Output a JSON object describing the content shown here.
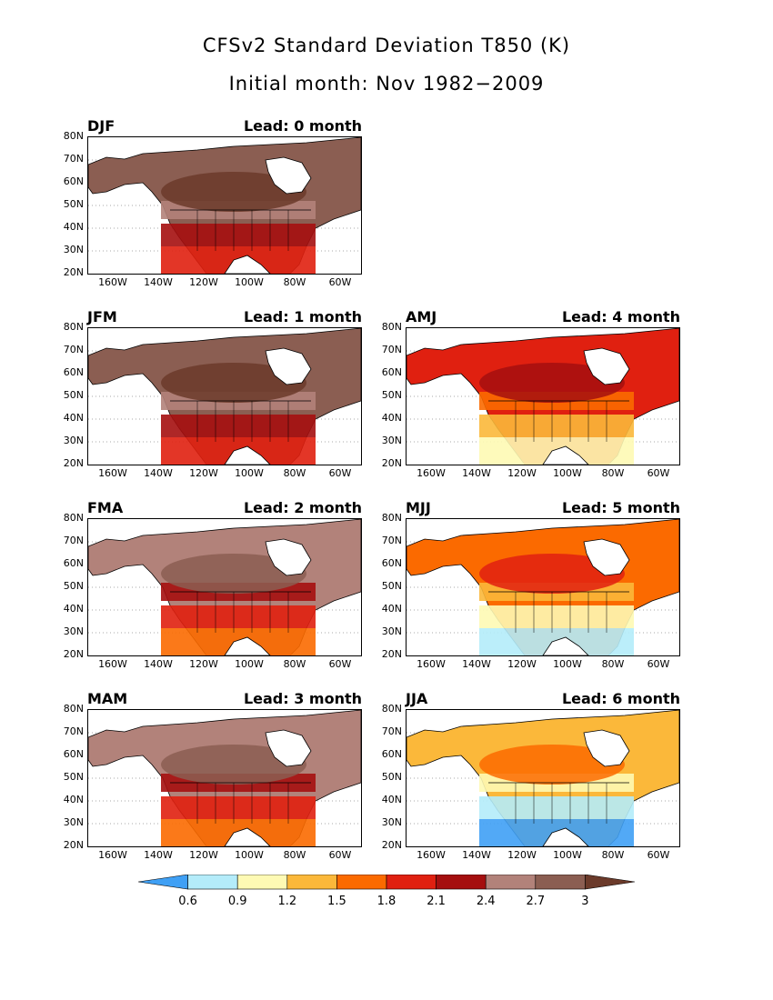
{
  "title": "CFSv2 Standard Deviation T850 (K)",
  "subtitle": "Initial month: Nov 1982−2009",
  "y_tick_labels": [
    "80N",
    "70N",
    "60N",
    "50N",
    "40N",
    "30N",
    "20N"
  ],
  "x_tick_labels": [
    "160W",
    "140W",
    "120W",
    "100W",
    "80W",
    "60W"
  ],
  "colorbar": {
    "labels": [
      "0.6",
      "0.9",
      "1.2",
      "1.5",
      "1.8",
      "2.1",
      "2.4",
      "2.7",
      "3"
    ],
    "colors": [
      "#3fa0f5",
      "#b4ecfa",
      "#fefab4",
      "#fbb83a",
      "#fb6a00",
      "#e02010",
      "#a50f0f",
      "#b2827a",
      "#8b5e52",
      "#6b3a2a"
    ]
  },
  "panels": [
    {
      "season": "DJF",
      "lead": "Lead: 0 month",
      "level": 8
    },
    {
      "season": "JFM",
      "lead": "Lead: 1 month",
      "level": 8
    },
    {
      "season": "AMJ",
      "lead": "Lead: 4 month",
      "level": 5
    },
    {
      "season": "FMA",
      "lead": "Lead: 2 month",
      "level": 7
    },
    {
      "season": "MJJ",
      "lead": "Lead: 5 month",
      "level": 4
    },
    {
      "season": "MAM",
      "lead": "Lead: 3 month",
      "level": 7
    },
    {
      "season": "JJA",
      "lead": "Lead: 6 month",
      "level": 3
    }
  ]
}
